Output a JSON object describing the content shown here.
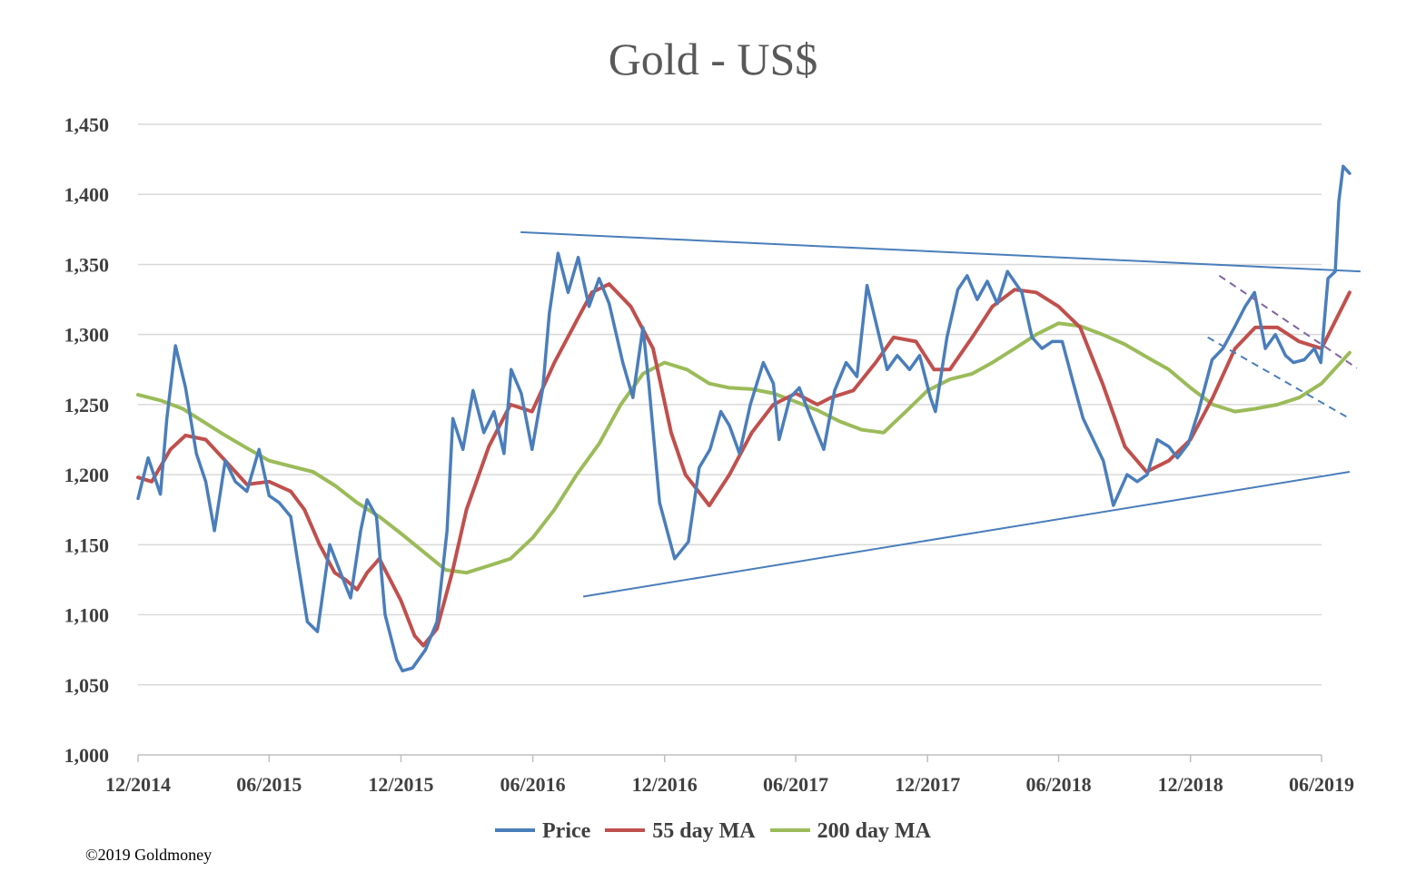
{
  "chart_data": {
    "type": "line",
    "title": "Gold - US$",
    "ylim": [
      1000,
      1450
    ],
    "yticks": [
      1000,
      1050,
      1100,
      1150,
      1200,
      1250,
      1300,
      1350,
      1400,
      1450
    ],
    "ytick_labels": [
      "1,000",
      "1,050",
      "1,100",
      "1,150",
      "1,200",
      "1,250",
      "1,300",
      "1,350",
      "1,400",
      "1,450"
    ],
    "xlim": [
      "2014-12",
      "2019-06"
    ],
    "xtick_labels": [
      "12/2014",
      "06/2015",
      "12/2015",
      "06/2016",
      "12/2016",
      "06/2017",
      "12/2017",
      "06/2018",
      "12/2018",
      "06/2019"
    ],
    "grid": "horizontal",
    "legend_position": "bottom",
    "series": [
      {
        "name": "Price",
        "color": "#4a7ebb",
        "x": [
          "2014-12-01",
          "2014-12-15",
          "2015-01-01",
          "2015-01-10",
          "2015-01-22",
          "2015-02-05",
          "2015-02-20",
          "2015-03-05",
          "2015-03-17",
          "2015-04-01",
          "2015-04-15",
          "2015-05-01",
          "2015-05-18",
          "2015-06-01",
          "2015-06-15",
          "2015-07-01",
          "2015-07-10",
          "2015-07-24",
          "2015-08-07",
          "2015-08-24",
          "2015-09-08",
          "2015-09-22",
          "2015-10-06",
          "2015-10-15",
          "2015-10-28",
          "2015-11-09",
          "2015-11-25",
          "2015-12-03",
          "2015-12-17",
          "2016-01-04",
          "2016-01-20",
          "2016-02-03",
          "2016-02-11",
          "2016-02-25",
          "2016-03-10",
          "2016-03-25",
          "2016-04-08",
          "2016-04-22",
          "2016-05-02",
          "2016-05-16",
          "2016-05-31",
          "2016-06-15",
          "2016-06-24",
          "2016-07-06",
          "2016-07-20",
          "2016-08-03",
          "2016-08-18",
          "2016-09-01",
          "2016-09-15",
          "2016-10-04",
          "2016-10-18",
          "2016-11-01",
          "2016-11-09",
          "2016-11-24",
          "2016-12-15",
          "2017-01-03",
          "2017-01-18",
          "2017-02-02",
          "2017-02-17",
          "2017-03-01",
          "2017-03-15",
          "2017-03-30",
          "2017-04-17",
          "2017-05-01",
          "2017-05-09",
          "2017-05-24",
          "2017-06-06",
          "2017-06-21",
          "2017-07-10",
          "2017-07-25",
          "2017-08-10",
          "2017-08-25",
          "2017-09-08",
          "2017-09-22",
          "2017-10-06",
          "2017-10-20",
          "2017-11-06",
          "2017-11-20",
          "2017-12-05",
          "2017-12-12",
          "2017-12-28",
          "2018-01-12",
          "2018-01-25",
          "2018-02-08",
          "2018-02-22",
          "2018-03-08",
          "2018-03-22",
          "2018-04-11",
          "2018-04-25",
          "2018-05-09",
          "2018-05-23",
          "2018-06-06",
          "2018-06-20",
          "2018-07-05",
          "2018-07-19",
          "2018-08-02",
          "2018-08-16",
          "2018-09-04",
          "2018-09-18",
          "2018-10-02",
          "2018-10-16",
          "2018-11-01",
          "2018-11-13",
          "2018-11-28",
          "2018-12-12",
          "2018-12-31",
          "2019-01-15",
          "2019-01-31",
          "2019-02-15",
          "2019-02-28",
          "2019-03-15",
          "2019-03-29",
          "2019-04-12",
          "2019-04-23",
          "2019-05-08",
          "2019-05-22",
          "2019-05-31",
          "2019-06-10",
          "2019-06-20",
          "2019-06-25",
          "2019-07-01",
          "2019-07-10"
        ],
        "values": [
          1183,
          1212,
          1186,
          1240,
          1292,
          1262,
          1215,
          1195,
          1160,
          1210,
          1195,
          1188,
          1218,
          1185,
          1180,
          1170,
          1140,
          1095,
          1088,
          1150,
          1130,
          1112,
          1160,
          1182,
          1170,
          1100,
          1068,
          1060,
          1062,
          1075,
          1095,
          1160,
          1240,
          1218,
          1260,
          1230,
          1245,
          1215,
          1275,
          1258,
          1218,
          1262,
          1315,
          1358,
          1330,
          1355,
          1320,
          1340,
          1322,
          1280,
          1255,
          1305,
          1265,
          1180,
          1140,
          1152,
          1205,
          1218,
          1245,
          1235,
          1215,
          1250,
          1280,
          1265,
          1225,
          1255,
          1262,
          1242,
          1218,
          1260,
          1280,
          1270,
          1335,
          1305,
          1275,
          1285,
          1275,
          1285,
          1255,
          1245,
          1298,
          1332,
          1342,
          1325,
          1338,
          1322,
          1345,
          1330,
          1298,
          1290,
          1295,
          1295,
          1268,
          1240,
          1225,
          1210,
          1178,
          1200,
          1195,
          1200,
          1225,
          1220,
          1212,
          1222,
          1245,
          1282,
          1290,
          1305,
          1320,
          1330,
          1290,
          1300,
          1285,
          1280,
          1282,
          1290,
          1280,
          1340,
          1345,
          1395,
          1420,
          1415
        ]
      },
      {
        "name": "55 day MA",
        "color": "#c0504d",
        "x": [
          "2014-12-01",
          "2014-12-20",
          "2015-01-15",
          "2015-02-05",
          "2015-03-05",
          "2015-04-01",
          "2015-05-01",
          "2015-06-01",
          "2015-07-01",
          "2015-07-20",
          "2015-08-10",
          "2015-08-31",
          "2015-09-15",
          "2015-10-01",
          "2015-10-15",
          "2015-11-01",
          "2015-12-01",
          "2015-12-20",
          "2016-01-01",
          "2016-01-20",
          "2016-02-10",
          "2016-03-01",
          "2016-04-01",
          "2016-05-01",
          "2016-05-31",
          "2016-07-01",
          "2016-08-01",
          "2016-08-22",
          "2016-09-15",
          "2016-10-15",
          "2016-11-15",
          "2016-12-10",
          "2016-12-30",
          "2017-02-01",
          "2017-03-01",
          "2017-04-01",
          "2017-05-01",
          "2017-06-01",
          "2017-07-01",
          "2017-07-20",
          "2017-08-20",
          "2017-09-20",
          "2017-10-15",
          "2017-11-15",
          "2017-12-10",
          "2018-01-01",
          "2018-02-01",
          "2018-03-01",
          "2018-04-01",
          "2018-05-01",
          "2018-06-01",
          "2018-07-01",
          "2018-08-01",
          "2018-09-01",
          "2018-10-01",
          "2018-11-01",
          "2018-12-01",
          "2019-01-01",
          "2019-02-01",
          "2019-03-01",
          "2019-04-01",
          "2019-05-01",
          "2019-06-01",
          "2019-07-10"
        ],
        "values": [
          1198,
          1195,
          1218,
          1228,
          1225,
          1210,
          1193,
          1195,
          1188,
          1175,
          1150,
          1130,
          1125,
          1118,
          1130,
          1140,
          1110,
          1085,
          1078,
          1090,
          1130,
          1175,
          1220,
          1250,
          1245,
          1280,
          1310,
          1330,
          1336,
          1320,
          1290,
          1230,
          1200,
          1178,
          1200,
          1230,
          1250,
          1258,
          1250,
          1255,
          1260,
          1280,
          1298,
          1295,
          1275,
          1275,
          1298,
          1320,
          1332,
          1330,
          1320,
          1305,
          1265,
          1220,
          1202,
          1210,
          1225,
          1255,
          1290,
          1305,
          1305,
          1295,
          1290,
          1330
        ]
      },
      {
        "name": "200 day MA",
        "color": "#9bbb59",
        "x": [
          "2014-12-01",
          "2015-01-01",
          "2015-02-01",
          "2015-03-01",
          "2015-04-01",
          "2015-05-01",
          "2015-06-01",
          "2015-07-01",
          "2015-08-01",
          "2015-09-01",
          "2015-10-01",
          "2015-11-01",
          "2015-12-01",
          "2016-01-01",
          "2016-02-01",
          "2016-03-01",
          "2016-04-01",
          "2016-05-01",
          "2016-06-01",
          "2016-07-01",
          "2016-08-01",
          "2016-09-01",
          "2016-10-01",
          "2016-11-01",
          "2016-12-01",
          "2017-01-01",
          "2017-02-01",
          "2017-03-01",
          "2017-04-01",
          "2017-05-01",
          "2017-06-01",
          "2017-07-01",
          "2017-08-01",
          "2017-09-01",
          "2017-10-01",
          "2017-11-01",
          "2017-12-01",
          "2018-01-01",
          "2018-02-01",
          "2018-03-01",
          "2018-04-01",
          "2018-05-01",
          "2018-06-01",
          "2018-07-01",
          "2018-08-01",
          "2018-09-01",
          "2018-10-01",
          "2018-11-01",
          "2018-12-01",
          "2019-01-01",
          "2019-02-01",
          "2019-03-01",
          "2019-04-01",
          "2019-05-01",
          "2019-06-01",
          "2019-07-10"
        ],
        "values": [
          1257,
          1253,
          1247,
          1238,
          1228,
          1219,
          1210,
          1206,
          1202,
          1192,
          1180,
          1170,
          1158,
          1145,
          1132,
          1130,
          1135,
          1140,
          1155,
          1175,
          1200,
          1222,
          1250,
          1272,
          1280,
          1275,
          1265,
          1262,
          1261,
          1258,
          1252,
          1246,
          1238,
          1232,
          1230,
          1245,
          1260,
          1268,
          1272,
          1280,
          1290,
          1300,
          1308,
          1306,
          1300,
          1293,
          1284,
          1275,
          1262,
          1250,
          1245,
          1247,
          1250,
          1255,
          1265,
          1287
        ]
      }
    ]
  },
  "trendlines": [
    {
      "x": [
        "2016-05-15",
        "2019-07-25"
      ],
      "values": [
        1373,
        1345
      ],
      "color": "#4a7ebb",
      "dashed": false
    },
    {
      "x": [
        "2016-08-10",
        "2019-07-10"
      ],
      "values": [
        1113,
        1202
      ],
      "color": "#4a7ebb",
      "dashed": false
    },
    {
      "x": [
        "2019-01-10",
        "2019-07-20"
      ],
      "values": [
        1342,
        1276
      ],
      "color": "#8064a2",
      "dashed": true
    },
    {
      "x": [
        "2018-12-25",
        "2019-07-10"
      ],
      "values": [
        1298,
        1240
      ],
      "color": "#4a7ebb",
      "dashed": true
    }
  ],
  "copyright": "©2019 Goldmoney"
}
